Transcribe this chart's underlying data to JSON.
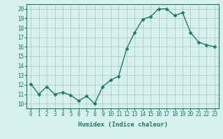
{
  "x": [
    0,
    1,
    2,
    3,
    4,
    5,
    6,
    7,
    8,
    9,
    10,
    11,
    12,
    13,
    14,
    15,
    16,
    17,
    18,
    19,
    20,
    21,
    22,
    23
  ],
  "y": [
    12.1,
    11.0,
    11.8,
    11.0,
    11.2,
    10.9,
    10.3,
    10.8,
    10.0,
    11.8,
    12.5,
    12.9,
    15.8,
    17.5,
    18.9,
    19.2,
    20.0,
    20.0,
    19.3,
    19.6,
    17.5,
    16.5,
    16.2,
    16.0
  ],
  "line_color": "#1a7a6a",
  "marker_color": "#1a7a6a",
  "bg_color": "#d6f0ec",
  "grid_color": "#a0c8c0",
  "xlabel": "Humidex (Indice chaleur)",
  "xlim": [
    -0.5,
    23.5
  ],
  "ylim": [
    9.5,
    20.5
  ],
  "yticks": [
    10,
    11,
    12,
    13,
    14,
    15,
    16,
    17,
    18,
    19,
    20
  ],
  "xticks": [
    0,
    1,
    2,
    3,
    4,
    5,
    6,
    7,
    8,
    9,
    10,
    11,
    12,
    13,
    14,
    15,
    16,
    17,
    18,
    19,
    20,
    21,
    22,
    23
  ],
  "tick_fontsize": 5.5,
  "label_fontsize": 6.5,
  "line_width": 1.0,
  "marker_size": 2.5
}
